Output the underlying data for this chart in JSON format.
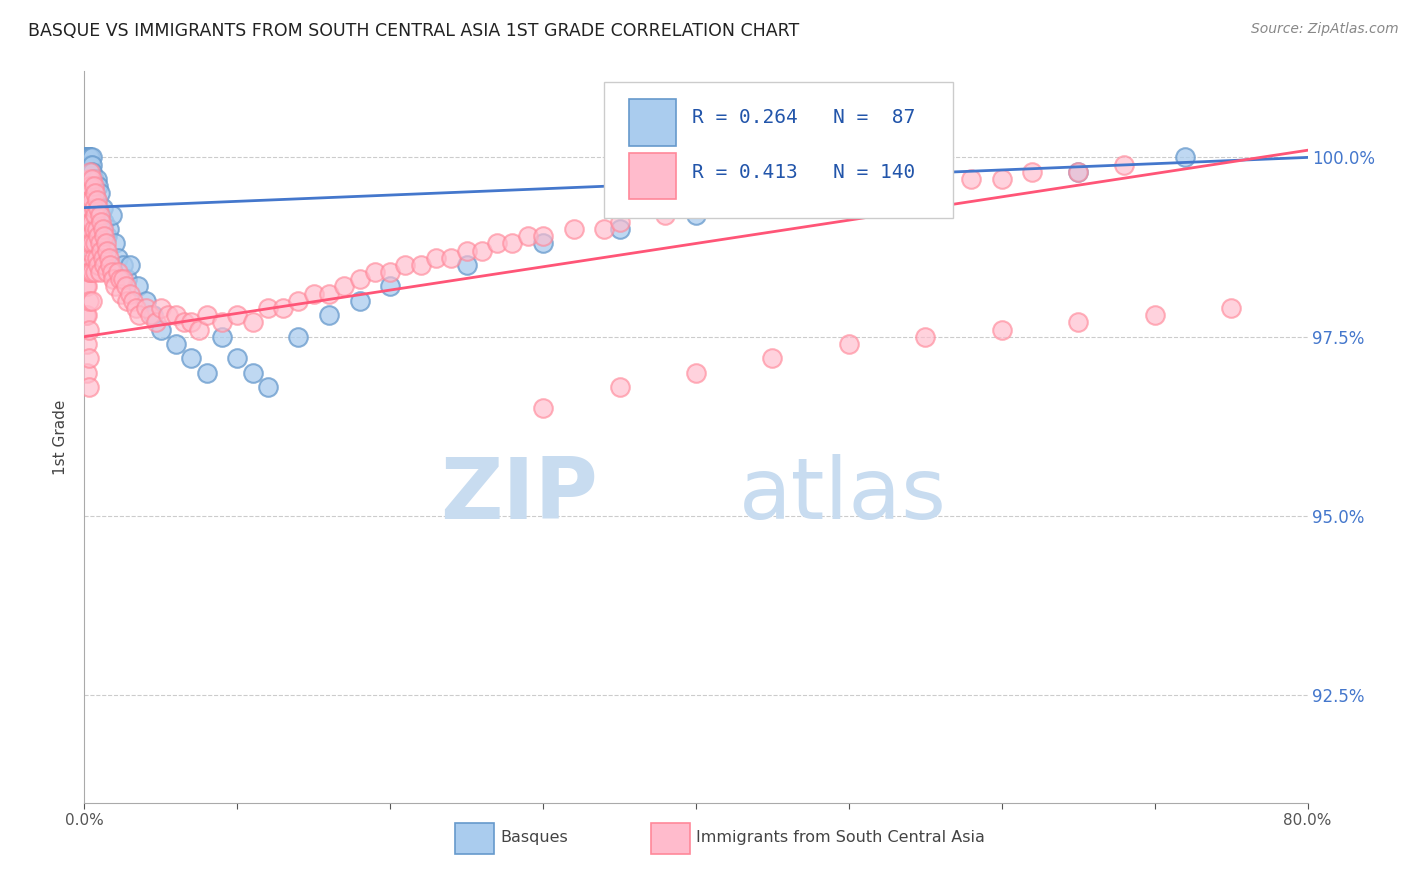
{
  "title": "BASQUE VS IMMIGRANTS FROM SOUTH CENTRAL ASIA 1ST GRADE CORRELATION CHART",
  "source": "Source: ZipAtlas.com",
  "ylabel": "1st Grade",
  "R_blue": 0.264,
  "N_blue": 87,
  "R_pink": 0.413,
  "N_pink": 140,
  "xlim": [
    0.0,
    0.8
  ],
  "ylim": [
    91.0,
    101.2
  ],
  "yticks": [
    100.0,
    97.5,
    95.0,
    92.5
  ],
  "ytick_labels": [
    "100.0%",
    "97.5%",
    "95.0%",
    "92.5%"
  ],
  "xtick_positions": [
    0.0,
    0.1,
    0.2,
    0.3,
    0.4,
    0.5,
    0.6,
    0.7,
    0.8
  ],
  "legend1_label": "Basques",
  "legend2_label": "Immigrants from South Central Asia",
  "blue_scatter_x": [
    0.001,
    0.001,
    0.001,
    0.001,
    0.001,
    0.001,
    0.001,
    0.001,
    0.001,
    0.001,
    0.002,
    0.002,
    0.002,
    0.002,
    0.002,
    0.002,
    0.002,
    0.002,
    0.002,
    0.002,
    0.003,
    0.003,
    0.003,
    0.003,
    0.003,
    0.003,
    0.003,
    0.003,
    0.003,
    0.003,
    0.004,
    0.004,
    0.004,
    0.004,
    0.004,
    0.005,
    0.005,
    0.005,
    0.005,
    0.005,
    0.006,
    0.006,
    0.006,
    0.007,
    0.007,
    0.008,
    0.008,
    0.009,
    0.009,
    0.01,
    0.01,
    0.011,
    0.012,
    0.013,
    0.015,
    0.016,
    0.018,
    0.02,
    0.022,
    0.025,
    0.028,
    0.03,
    0.035,
    0.04,
    0.045,
    0.05,
    0.06,
    0.07,
    0.08,
    0.09,
    0.1,
    0.11,
    0.12,
    0.14,
    0.16,
    0.18,
    0.2,
    0.25,
    0.3,
    0.35,
    0.4,
    0.43,
    0.46,
    0.5,
    0.55,
    0.65,
    0.72
  ],
  "blue_scatter_y": [
    100.0,
    100.0,
    100.0,
    100.0,
    100.0,
    100.0,
    100.0,
    100.0,
    99.9,
    99.8,
    100.0,
    100.0,
    100.0,
    100.0,
    100.0,
    99.9,
    99.9,
    99.8,
    99.7,
    99.6,
    100.0,
    100.0,
    100.0,
    99.9,
    99.8,
    99.7,
    99.6,
    99.5,
    99.4,
    99.3,
    100.0,
    99.9,
    99.8,
    99.7,
    99.6,
    100.0,
    99.9,
    99.8,
    99.5,
    99.3,
    99.7,
    99.5,
    99.2,
    99.6,
    99.3,
    99.7,
    99.4,
    99.6,
    99.2,
    99.5,
    99.0,
    99.2,
    99.3,
    99.1,
    98.9,
    99.0,
    99.2,
    98.8,
    98.6,
    98.5,
    98.3,
    98.5,
    98.2,
    98.0,
    97.8,
    97.6,
    97.4,
    97.2,
    97.0,
    97.5,
    97.2,
    97.0,
    96.8,
    97.5,
    97.8,
    98.0,
    98.2,
    98.5,
    98.8,
    99.0,
    99.2,
    99.3,
    99.5,
    99.6,
    99.7,
    99.8,
    100.0
  ],
  "pink_scatter_x": [
    0.001,
    0.001,
    0.001,
    0.001,
    0.001,
    0.001,
    0.001,
    0.001,
    0.001,
    0.001,
    0.002,
    0.002,
    0.002,
    0.002,
    0.002,
    0.002,
    0.002,
    0.002,
    0.002,
    0.002,
    0.003,
    0.003,
    0.003,
    0.003,
    0.003,
    0.003,
    0.003,
    0.003,
    0.003,
    0.003,
    0.004,
    0.004,
    0.004,
    0.004,
    0.004,
    0.004,
    0.005,
    0.005,
    0.005,
    0.005,
    0.005,
    0.005,
    0.006,
    0.006,
    0.006,
    0.006,
    0.007,
    0.007,
    0.007,
    0.007,
    0.008,
    0.008,
    0.008,
    0.009,
    0.009,
    0.009,
    0.01,
    0.01,
    0.01,
    0.011,
    0.011,
    0.012,
    0.012,
    0.013,
    0.013,
    0.014,
    0.015,
    0.015,
    0.016,
    0.017,
    0.018,
    0.019,
    0.02,
    0.022,
    0.023,
    0.024,
    0.025,
    0.027,
    0.028,
    0.03,
    0.032,
    0.034,
    0.036,
    0.04,
    0.043,
    0.047,
    0.05,
    0.055,
    0.06,
    0.065,
    0.07,
    0.075,
    0.08,
    0.09,
    0.1,
    0.11,
    0.12,
    0.13,
    0.14,
    0.15,
    0.16,
    0.17,
    0.18,
    0.19,
    0.2,
    0.21,
    0.22,
    0.23,
    0.24,
    0.25,
    0.26,
    0.27,
    0.28,
    0.29,
    0.3,
    0.32,
    0.34,
    0.35,
    0.38,
    0.4,
    0.43,
    0.46,
    0.49,
    0.52,
    0.55,
    0.58,
    0.6,
    0.62,
    0.65,
    0.68,
    0.3,
    0.35,
    0.4,
    0.45,
    0.5,
    0.55,
    0.6,
    0.65,
    0.7,
    0.75
  ],
  "pink_scatter_y": [
    99.5,
    99.5,
    99.4,
    99.3,
    99.2,
    99.0,
    98.8,
    98.5,
    98.2,
    97.8,
    99.6,
    99.4,
    99.2,
    99.0,
    98.8,
    98.5,
    98.2,
    97.8,
    97.4,
    97.0,
    99.7,
    99.5,
    99.3,
    99.0,
    98.7,
    98.4,
    98.0,
    97.6,
    97.2,
    96.8,
    99.8,
    99.6,
    99.4,
    99.1,
    98.8,
    98.4,
    99.7,
    99.4,
    99.1,
    98.8,
    98.4,
    98.0,
    99.6,
    99.3,
    99.0,
    98.6,
    99.5,
    99.2,
    98.8,
    98.4,
    99.4,
    99.0,
    98.6,
    99.3,
    98.9,
    98.5,
    99.2,
    98.8,
    98.4,
    99.1,
    98.7,
    99.0,
    98.6,
    98.9,
    98.5,
    98.8,
    98.7,
    98.4,
    98.6,
    98.5,
    98.4,
    98.3,
    98.2,
    98.4,
    98.3,
    98.1,
    98.3,
    98.2,
    98.0,
    98.1,
    98.0,
    97.9,
    97.8,
    97.9,
    97.8,
    97.7,
    97.9,
    97.8,
    97.8,
    97.7,
    97.7,
    97.6,
    97.8,
    97.7,
    97.8,
    97.7,
    97.9,
    97.9,
    98.0,
    98.1,
    98.1,
    98.2,
    98.3,
    98.4,
    98.4,
    98.5,
    98.5,
    98.6,
    98.6,
    98.7,
    98.7,
    98.8,
    98.8,
    98.9,
    98.9,
    99.0,
    99.0,
    99.1,
    99.2,
    99.3,
    99.4,
    99.5,
    99.5,
    99.6,
    99.6,
    99.7,
    99.7,
    99.8,
    99.8,
    99.9,
    96.5,
    96.8,
    97.0,
    97.2,
    97.4,
    97.5,
    97.6,
    97.7,
    97.8,
    97.9
  ],
  "blue_line_x": [
    0.0,
    0.8
  ],
  "blue_line_y": [
    99.3,
    100.0
  ],
  "pink_line_x": [
    0.0,
    0.8
  ],
  "pink_line_y": [
    97.5,
    100.1
  ]
}
